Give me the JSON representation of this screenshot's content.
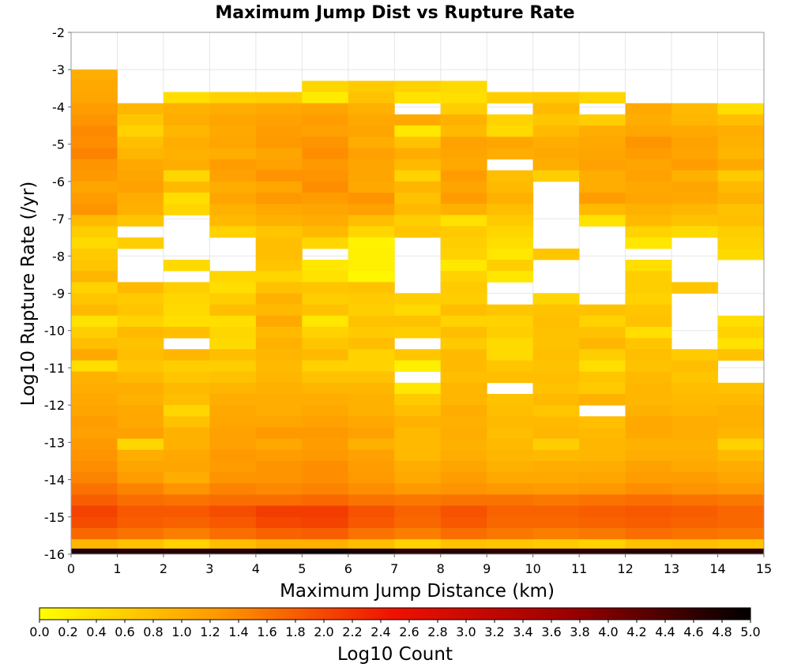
{
  "chart_data": {
    "type": "heatmap",
    "title": "Maximum Jump Dist vs Rupture Rate",
    "xlabel": "Maximum Jump Distance (km)",
    "ylabel": "Log10 Rupture Rate (/yr)",
    "xlim": [
      0,
      15
    ],
    "ylim": [
      -16,
      -2
    ],
    "x_ticks": [
      "0",
      "1",
      "2",
      "3",
      "4",
      "5",
      "6",
      "7",
      "8",
      "9",
      "10",
      "11",
      "12",
      "13",
      "14",
      "15"
    ],
    "y_ticks": [
      "-2",
      "-3",
      "-4",
      "-5",
      "-6",
      "-7",
      "-8",
      "-9",
      "-10",
      "-11",
      "-12",
      "-13",
      "-14",
      "-15",
      "-16"
    ],
    "x_bins": [
      0.5,
      1.5,
      2.5,
      3.5,
      4.5,
      5.5,
      6.5,
      7.5,
      8.5,
      9.5,
      10.5,
      11.5,
      12.5,
      13.5,
      14.5
    ],
    "y_bin_start": -3.15,
    "y_bin_width": 0.3,
    "y_bin_count": 43,
    "grid": true,
    "colorbar": {
      "label": "Log10 Count",
      "range": [
        0,
        5
      ],
      "ticks": [
        "0.0",
        "0.2",
        "0.4",
        "0.6",
        "0.8",
        "1.0",
        "1.2",
        "1.4",
        "1.6",
        "1.8",
        "2.0",
        "2.2",
        "2.4",
        "2.6",
        "2.8",
        "3.0",
        "3.2",
        "3.4",
        "3.6",
        "3.8",
        "4.0",
        "4.2",
        "4.4",
        "4.6",
        "4.8",
        "5.0"
      ],
      "colors": [
        "#ffff00",
        "#ff9900",
        "#ee1100",
        "#990000",
        "#000000"
      ]
    },
    "values": [
      [
        1.0,
        null,
        null,
        null,
        null,
        null,
        null,
        null,
        null,
        null,
        null,
        null,
        null,
        null,
        null
      ],
      [
        1.05,
        null,
        null,
        null,
        null,
        0.5,
        0.65,
        0.55,
        0.45,
        null,
        null,
        null,
        null,
        null,
        null
      ],
      [
        1.1,
        null,
        0.4,
        0.55,
        0.6,
        0.25,
        0.75,
        0.35,
        0.4,
        0.6,
        0.65,
        0.5,
        null,
        null,
        null
      ],
      [
        1.2,
        0.9,
        0.95,
        1.0,
        1.05,
        1.1,
        0.95,
        null,
        0.6,
        null,
        0.85,
        null,
        1.05,
        0.85,
        0.4
      ],
      [
        1.3,
        0.7,
        1.0,
        1.1,
        1.15,
        1.2,
        1.05,
        1.05,
        0.95,
        0.55,
        0.7,
        0.6,
        1.0,
        0.9,
        0.8
      ],
      [
        1.4,
        0.55,
        0.9,
        1.05,
        1.2,
        1.15,
        1.1,
        0.3,
        0.85,
        0.45,
        0.85,
        1.0,
        1.1,
        1.05,
        1.0
      ],
      [
        1.35,
        0.8,
        1.0,
        1.1,
        1.25,
        1.3,
        1.0,
        0.75,
        1.15,
        1.1,
        1.0,
        1.05,
        1.3,
        1.15,
        0.95
      ],
      [
        1.45,
        0.9,
        0.95,
        1.0,
        1.1,
        1.35,
        1.15,
        1.0,
        1.1,
        1.0,
        1.05,
        1.1,
        1.2,
        1.1,
        0.9
      ],
      [
        1.3,
        1.05,
        1.0,
        1.2,
        1.15,
        1.25,
        1.1,
        0.85,
        1.05,
        null,
        1.0,
        1.15,
        1.1,
        1.2,
        1.05
      ],
      [
        1.25,
        1.1,
        0.5,
        1.15,
        1.3,
        1.3,
        1.1,
        0.55,
        1.2,
        0.8,
        0.6,
        1.0,
        1.15,
        0.95,
        0.65
      ],
      [
        1.1,
        1.15,
        0.85,
        1.0,
        1.1,
        1.35,
        1.05,
        0.9,
        1.1,
        0.85,
        null,
        1.0,
        1.05,
        1.1,
        0.85
      ],
      [
        1.2,
        1.0,
        0.4,
        1.1,
        1.25,
        1.2,
        1.3,
        0.75,
        1.2,
        0.95,
        null,
        1.2,
        1.1,
        1.05,
        0.95
      ],
      [
        1.3,
        0.95,
        0.5,
        0.95,
        1.05,
        1.1,
        1.15,
        0.85,
        0.95,
        0.8,
        null,
        0.85,
        0.95,
        0.9,
        0.75
      ],
      [
        0.85,
        0.7,
        null,
        0.85,
        0.95,
        1.0,
        0.8,
        0.6,
        0.35,
        0.65,
        null,
        0.35,
        0.85,
        0.75,
        0.8
      ],
      [
        0.6,
        null,
        null,
        0.55,
        0.7,
        0.85,
        0.5,
        0.7,
        0.65,
        0.5,
        null,
        null,
        0.55,
        0.45,
        0.6
      ],
      [
        0.45,
        0.6,
        null,
        null,
        0.8,
        0.5,
        0.15,
        null,
        0.6,
        0.4,
        null,
        null,
        0.3,
        null,
        0.55
      ],
      [
        0.65,
        null,
        null,
        null,
        0.8,
        null,
        0.2,
        null,
        0.55,
        0.3,
        0.7,
        null,
        null,
        null,
        0.45
      ],
      [
        0.7,
        null,
        0.45,
        null,
        0.7,
        0.3,
        0.2,
        null,
        0.3,
        0.6,
        null,
        null,
        0.4,
        null,
        null
      ],
      [
        0.9,
        null,
        null,
        0.5,
        0.5,
        0.35,
        0.1,
        null,
        0.55,
        0.3,
        null,
        null,
        0.6,
        null,
        null
      ],
      [
        0.55,
        0.85,
        0.6,
        0.4,
        0.75,
        0.7,
        0.75,
        null,
        0.65,
        null,
        null,
        null,
        0.6,
        0.7,
        null
      ],
      [
        0.7,
        0.65,
        0.5,
        0.6,
        0.95,
        0.6,
        0.65,
        0.6,
        0.6,
        null,
        0.5,
        null,
        0.55,
        null,
        null
      ],
      [
        0.85,
        0.7,
        0.45,
        0.8,
        0.85,
        0.75,
        0.6,
        0.45,
        0.8,
        0.7,
        0.75,
        0.75,
        0.7,
        null,
        null
      ],
      [
        0.35,
        0.55,
        0.4,
        0.4,
        1.05,
        0.3,
        0.75,
        0.75,
        0.55,
        0.55,
        0.8,
        0.55,
        0.75,
        null,
        0.4
      ],
      [
        0.6,
        0.85,
        0.8,
        0.5,
        0.85,
        0.55,
        0.65,
        0.6,
        0.8,
        0.6,
        0.75,
        0.75,
        0.4,
        null,
        0.55
      ],
      [
        0.8,
        0.75,
        null,
        0.45,
        0.95,
        0.7,
        0.8,
        null,
        0.65,
        0.45,
        0.75,
        0.9,
        0.7,
        null,
        0.35
      ],
      [
        1.05,
        0.8,
        0.9,
        0.8,
        0.9,
        0.85,
        0.55,
        0.7,
        0.85,
        0.45,
        0.8,
        0.6,
        0.8,
        0.65,
        0.75
      ],
      [
        0.4,
        0.7,
        0.6,
        0.6,
        0.85,
        0.55,
        0.55,
        0.2,
        0.85,
        0.7,
        0.75,
        0.4,
        0.75,
        0.8,
        null
      ],
      [
        0.95,
        0.85,
        0.7,
        0.75,
        0.9,
        0.75,
        0.75,
        null,
        0.8,
        0.8,
        0.8,
        0.7,
        0.85,
        0.7,
        null
      ],
      [
        1.0,
        1.0,
        0.85,
        0.9,
        0.95,
        0.9,
        0.9,
        0.3,
        0.9,
        null,
        0.75,
        0.65,
        0.9,
        0.8,
        0.75
      ],
      [
        1.05,
        0.95,
        0.8,
        1.0,
        1.0,
        1.0,
        0.95,
        0.65,
        0.9,
        0.75,
        0.85,
        0.95,
        0.9,
        0.85,
        0.85
      ],
      [
        1.1,
        1.05,
        0.5,
        1.05,
        1.0,
        1.05,
        0.95,
        0.8,
        1.0,
        0.8,
        0.7,
        null,
        0.95,
        0.9,
        0.95
      ],
      [
        1.2,
        1.05,
        0.75,
        1.1,
        1.1,
        1.15,
        1.05,
        0.95,
        0.95,
        0.85,
        0.85,
        0.8,
        1.05,
        1.0,
        0.95
      ],
      [
        1.15,
        1.15,
        0.95,
        1.15,
        1.25,
        1.25,
        1.15,
        0.85,
        1.0,
        0.8,
        0.9,
        0.85,
        1.05,
        1.0,
        0.9
      ],
      [
        1.25,
        0.5,
        0.95,
        1.15,
        1.05,
        1.2,
        0.95,
        0.85,
        0.95,
        0.85,
        0.6,
        0.9,
        0.95,
        0.95,
        0.55
      ],
      [
        1.3,
        1.0,
        1.05,
        1.25,
        1.2,
        1.25,
        1.15,
        0.85,
        1.0,
        0.9,
        0.85,
        0.9,
        1.0,
        1.0,
        0.85
      ],
      [
        1.35,
        1.1,
        1.1,
        1.2,
        1.3,
        1.35,
        1.2,
        1.0,
        1.1,
        0.95,
        1.0,
        1.0,
        1.15,
        1.05,
        1.0
      ],
      [
        1.45,
        1.2,
        1.0,
        1.3,
        1.3,
        1.35,
        1.25,
        1.05,
        1.2,
        1.05,
        1.05,
        1.1,
        1.2,
        1.2,
        1.1
      ],
      [
        1.6,
        1.45,
        1.3,
        1.45,
        1.4,
        1.45,
        1.35,
        1.25,
        1.3,
        1.25,
        1.2,
        1.25,
        1.35,
        1.3,
        1.25
      ],
      [
        1.8,
        1.65,
        1.6,
        1.65,
        1.65,
        1.7,
        1.6,
        1.55,
        1.6,
        1.6,
        1.55,
        1.6,
        1.65,
        1.6,
        1.55
      ],
      [
        2.05,
        1.85,
        1.85,
        1.95,
        2.1,
        2.1,
        1.9,
        1.75,
        1.9,
        1.75,
        1.75,
        1.8,
        1.85,
        1.8,
        1.7
      ],
      [
        1.95,
        1.8,
        1.75,
        1.85,
        2.0,
        2.05,
        1.85,
        1.7,
        1.85,
        1.7,
        1.7,
        1.75,
        1.8,
        1.75,
        1.7
      ],
      [
        1.7,
        1.6,
        1.5,
        1.65,
        1.75,
        1.8,
        1.6,
        1.5,
        1.65,
        1.55,
        1.5,
        1.55,
        1.65,
        1.6,
        1.55
      ],
      [
        0.9,
        0.75,
        0.55,
        0.8,
        0.95,
        0.95,
        0.8,
        0.55,
        0.75,
        0.7,
        0.65,
        0.55,
        0.75,
        0.8,
        0.7
      ]
    ],
    "floor_row": [
      4.75,
      4.7,
      4.7,
      4.72,
      4.85,
      4.9,
      4.8,
      4.65,
      4.72,
      4.65,
      4.65,
      4.65,
      4.7,
      4.7,
      4.65
    ]
  }
}
